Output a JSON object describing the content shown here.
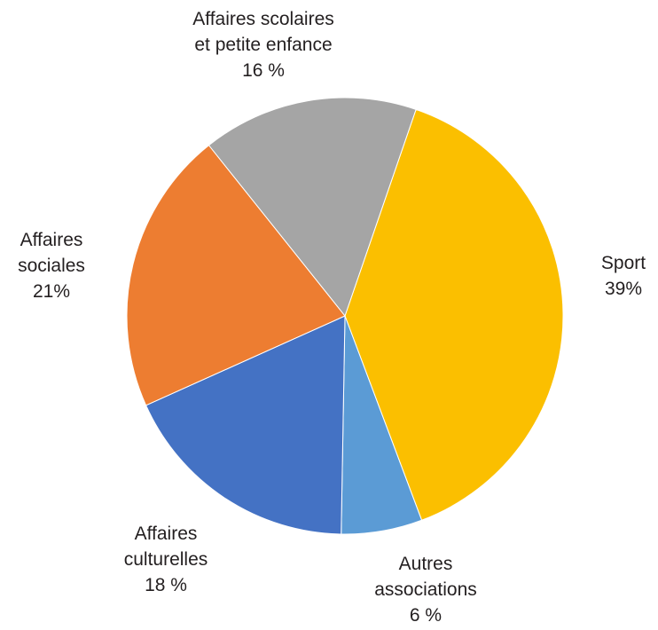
{
  "chart_data": {
    "type": "pie",
    "title": "",
    "slices": [
      {
        "name": "Sport",
        "value": 39,
        "value_label": "39%",
        "label_lines": [
          "Sport"
        ],
        "color": "#fbbf00"
      },
      {
        "name": "Autres associations",
        "value": 6,
        "value_label": "6 %",
        "label_lines": [
          "Autres",
          "associations"
        ],
        "color": "#5b9bd5"
      },
      {
        "name": "Affaires culturelles",
        "value": 18,
        "value_label": "18 %",
        "label_lines": [
          "Affaires",
          "culturelles"
        ],
        "color": "#4472c4"
      },
      {
        "name": "Affaires sociales",
        "value": 21,
        "value_label": "21%",
        "label_lines": [
          "Affaires",
          "sociales"
        ],
        "color": "#ed7d31"
      },
      {
        "name": "Affaires scolaires et petite enfance",
        "value": 16,
        "value_label": "16 %",
        "label_lines": [
          "Affaires scolaires",
          "et petite enfance"
        ],
        "color": "#a5a5a5"
      }
    ],
    "start_angle_deg": 19,
    "direction": "clockwise",
    "legend": "none",
    "labels_position": "outside"
  }
}
